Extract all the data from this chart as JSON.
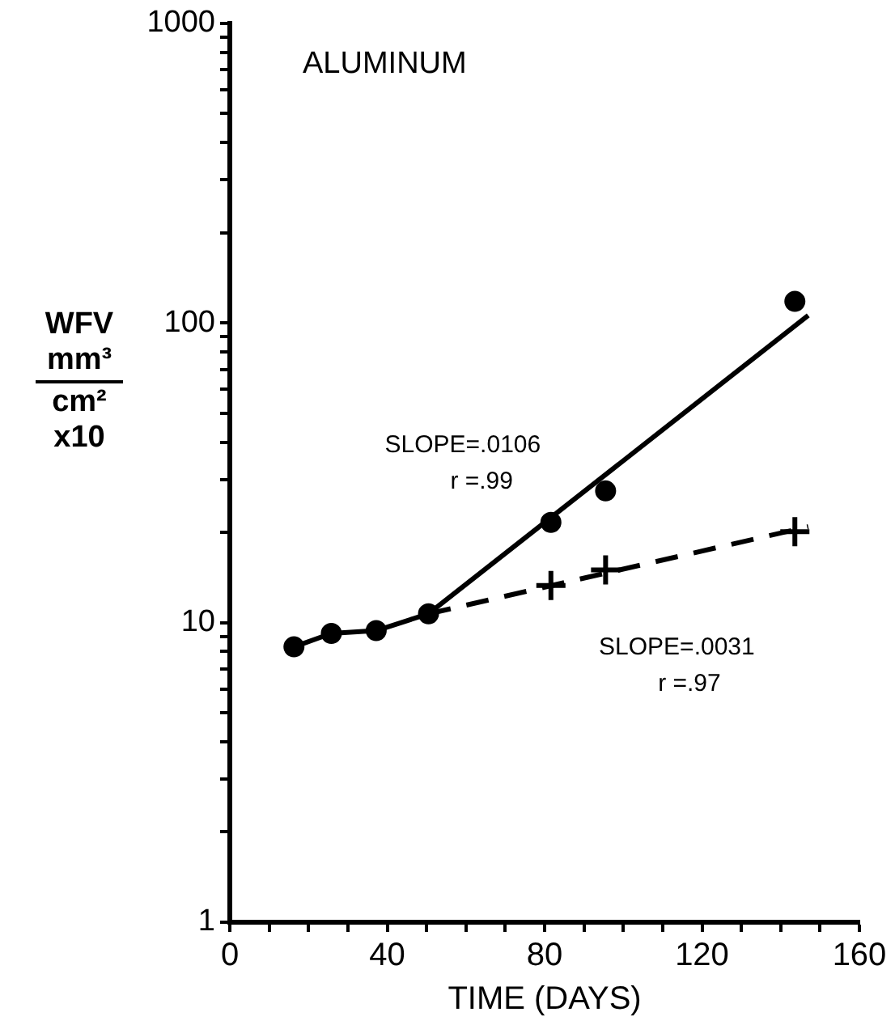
{
  "chart_data": {
    "type": "scatter",
    "title": "ALUMINUM",
    "xlabel": "TIME (DAYS)",
    "ylabel": "WFV mm³ cm² x10",
    "log": "y",
    "grid": false,
    "legend": false,
    "xlim": [
      0,
      160
    ],
    "xticks": [
      0,
      {
        "value": 10,
        "label": null
      },
      {
        "value": 20,
        "label": null
      },
      {
        "value": 30,
        "label": null
      },
      40,
      {
        "value": 50,
        "label": null
      },
      {
        "value": 60,
        "label": null
      },
      {
        "value": 70,
        "label": null
      },
      80,
      {
        "value": 90,
        "label": null
      },
      {
        "value": 100,
        "label": null
      },
      {
        "value": 110,
        "label": null
      },
      120,
      {
        "value": 130,
        "label": null
      },
      {
        "value": 140,
        "label": null
      },
      {
        "value": 150,
        "label": null
      },
      160
    ],
    "ylim": [
      1,
      1000
    ],
    "yticks": [
      1,
      {
        "value": 2,
        "label": null
      },
      {
        "value": 3,
        "label": null
      },
      {
        "value": 4,
        "label": null
      },
      {
        "value": 5,
        "label": null
      },
      {
        "value": 6,
        "label": null
      },
      {
        "value": 7,
        "label": null
      },
      {
        "value": 8,
        "label": null
      },
      {
        "value": 9,
        "label": null
      },
      10,
      {
        "value": 20,
        "label": null
      },
      {
        "value": 30,
        "label": null
      },
      {
        "value": 40,
        "label": null
      },
      {
        "value": 50,
        "label": null
      },
      {
        "value": 60,
        "label": null
      },
      {
        "value": 70,
        "label": null
      },
      {
        "value": 80,
        "label": null
      },
      {
        "value": 90,
        "label": null
      },
      100,
      {
        "value": 200,
        "label": null
      },
      {
        "value": 300,
        "label": null
      },
      {
        "value": 400,
        "label": null
      },
      {
        "value": 500,
        "label": null
      },
      {
        "value": 600,
        "label": null
      },
      {
        "value": 700,
        "label": null
      },
      {
        "value": 800,
        "label": null
      },
      {
        "value": 900,
        "label": null
      },
      1000
    ],
    "series": [
      {
        "type": "line",
        "color": "#000000",
        "marker": "none",
        "line_style": "solid",
        "x": [
          16.3,
          25.8,
          37.2,
          50.5,
          147
        ],
        "values": [
          8.3,
          9.2,
          9.4,
          10.7,
          106
        ]
      },
      {
        "type": "line",
        "color": "#000000",
        "marker": "none",
        "line_style": "dashed",
        "x": [
          50.5,
          147
        ],
        "values": [
          10.7,
          20.9
        ]
      },
      {
        "type": "scatter",
        "color": "#000000",
        "marker": "circle",
        "x": [
          16.3,
          25.8,
          37.2,
          50.5,
          81.6,
          95.5,
          143.6
        ],
        "values": [
          8.3,
          9.2,
          9.4,
          10.7,
          21.6,
          27.5,
          118
        ]
      },
      {
        "type": "scatter",
        "color": "#000000",
        "marker": "cross",
        "x": [
          81.6,
          95.5,
          143.6
        ],
        "values": [
          13.3,
          15.0,
          20.1
        ]
      }
    ],
    "annotations": [
      "SLOPE=.0106",
      "r =.99",
      "SLOPE=.0031",
      "r =.97"
    ]
  }
}
